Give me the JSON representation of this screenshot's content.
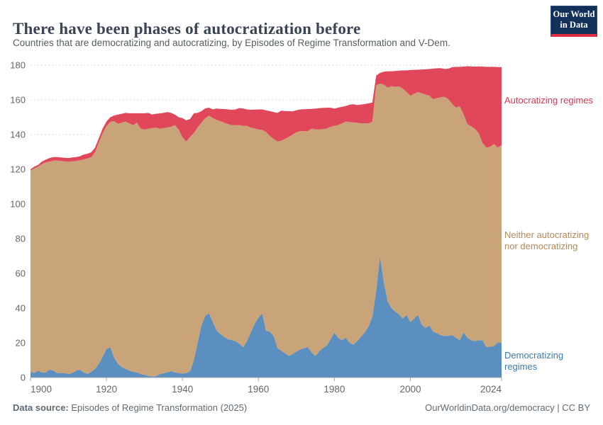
{
  "header": {
    "title": "There have been phases of autocratization before",
    "subtitle": "Countries that are democratizing and autocratizing, by Episodes of Regime Transformation and V-Dem.",
    "logo": {
      "line1": "Our World",
      "line2": "in Data"
    }
  },
  "series_labels": {
    "autocratizing": "Autocratizing regimes",
    "neither": "Neither autocratizing nor democratizing",
    "democratizing": "Democratizing regimes"
  },
  "footer": {
    "source_label": "Data source:",
    "source_value": " Episodes of Regime Transformation (2025)",
    "credit": "OurWorldinData.org/democracy | CC BY"
  },
  "colors": {
    "democratizing_area": "#5b8fc0",
    "neither_area": "#c8a478",
    "autocratizing_area": "#e0475a",
    "democratizing_label": "#3d7bad",
    "neither_label": "#b6895c",
    "autocratizing_label": "#d63b50",
    "gridline": "#dcdcdc",
    "axis": "#a7a7a7",
    "tick_text": "#666666",
    "logo_bg": "#12305a",
    "logo_bar": "#dc2e40"
  },
  "chart_data": {
    "type": "area",
    "stacked": true,
    "title": "There have been phases of autocratization before",
    "xlabel": "",
    "ylabel": "",
    "x_start": 1900,
    "x_end": 2024,
    "ylim": [
      0,
      180
    ],
    "grid": "dashed-horizontal",
    "legend_position": "right-edge-labels",
    "x_ticks": [
      1900,
      1920,
      1940,
      1960,
      1980,
      2000,
      2024
    ],
    "y_ticks": [
      0,
      20,
      40,
      60,
      80,
      100,
      120,
      140,
      160,
      180
    ],
    "series": [
      {
        "id": "democratizing",
        "name": "Democratizing regimes",
        "color": "#5b8fc0",
        "values": [
          3.5,
          2.6,
          4,
          2.8,
          3,
          4.6,
          4,
          2.6,
          2.6,
          2.6,
          2,
          2.6,
          4,
          4.6,
          3,
          2,
          3.3,
          5,
          8,
          12,
          16.5,
          17.5,
          11.5,
          8,
          6,
          5,
          4,
          3.3,
          3,
          2,
          1.5,
          1,
          0.6,
          0.8,
          1.9,
          2.5,
          3,
          3.7,
          3,
          2.6,
          2.2,
          2.6,
          3.5,
          10,
          20,
          30,
          35.5,
          37,
          32,
          27,
          25,
          23.5,
          22,
          21.6,
          21,
          19.5,
          17.5,
          21,
          26,
          31,
          34.5,
          37,
          27,
          26.5,
          24,
          17,
          15.5,
          14,
          12.5,
          13.5,
          15,
          16,
          17,
          17.5,
          14.5,
          12.5,
          15,
          17,
          18.5,
          22,
          26,
          23,
          21.5,
          23,
          20,
          19,
          21,
          23.5,
          26,
          29.5,
          35,
          50,
          70,
          55,
          44,
          40,
          38,
          36.5,
          34,
          36,
          32,
          34,
          36,
          30.5,
          28.5,
          30,
          26.5,
          25.5,
          24.5,
          24,
          24,
          24.5,
          23,
          21.5,
          26,
          23,
          21.5,
          21,
          21.5,
          21.5,
          17.5,
          17.8,
          18,
          20.3,
          20
        ]
      },
      {
        "id": "neither",
        "name": "Neither autocratizing nor democratizing",
        "color": "#c8a478",
        "values": [
          115.8,
          117.9,
          117.5,
          120.2,
          121,
          119.8,
          121,
          122.4,
          122.2,
          122,
          122.4,
          122,
          120.8,
          120.6,
          122.7,
          124.2,
          123.7,
          124.8,
          127.5,
          128.8,
          128.4,
          129.8,
          136.3,
          138.3,
          140.8,
          142.5,
          142.5,
          142.1,
          143.9,
          141.5,
          141.4,
          142.4,
          143.1,
          143.3,
          141.5,
          141.2,
          141.1,
          140.8,
          142.4,
          140.4,
          136.3,
          133.4,
          135.1,
          131,
          124.1,
          117,
          114,
          113.9,
          117.5,
          121.5,
          122.8,
          123.3,
          124,
          123.8,
          124.4,
          125.9,
          127.5,
          124,
          118,
          112.5,
          108.5,
          105.7,
          114.5,
          112.8,
          113.5,
          119,
          121,
          123.5,
          126.1,
          126.5,
          126.4,
          126,
          125,
          124.5,
          129,
          130.5,
          128,
          126.2,
          125,
          122.5,
          119,
          122.5,
          125,
          124.5,
          127.2,
          128,
          125.8,
          123,
          120.5,
          117,
          112.5,
          118.5,
          99.4,
          113.8,
          123,
          127.9,
          129.5,
          131.3,
          132.5,
          128.5,
          130.4,
          129.5,
          128.5,
          133.3,
          134.5,
          132.4,
          133.9,
          135.5,
          137,
          137.8,
          136.4,
          133.2,
          132.6,
          134.8,
          125.6,
          123.1,
          123.3,
          122.4,
          119.2,
          113.7,
          115,
          115.2,
          116.6,
          112.2,
          113.9
        ]
      },
      {
        "id": "autocratizing",
        "name": "Autocratizing regimes",
        "color": "#e0475a",
        "values": [
          0.7,
          1,
          1,
          1.5,
          1.5,
          2.1,
          2,
          2,
          2,
          2,
          2.1,
          2.2,
          2.2,
          2.3,
          2.8,
          2.8,
          2.8,
          2.7,
          2.5,
          2.7,
          2.6,
          2.7,
          3.2,
          5.2,
          5.2,
          5,
          5.8,
          6.9,
          5.4,
          8.8,
          9.4,
          9.1,
          7.9,
          7.9,
          8.8,
          8.8,
          8.9,
          8,
          6.1,
          7,
          11,
          12.2,
          10.4,
          11.3,
          8.4,
          6.5,
          5.6,
          4.6,
          5,
          6.5,
          7,
          7.9,
          8.5,
          8.9,
          9.1,
          9.9,
          10,
          9.5,
          10.3,
          10.9,
          11.5,
          11.8,
          12.5,
          14.2,
          15.5,
          16.5,
          17.3,
          16.1,
          14.9,
          13.4,
          12.6,
          12.5,
          12.6,
          12.7,
          11.3,
          12,
          12.2,
          12.2,
          12,
          11,
          10,
          10,
          9.5,
          9,
          10,
          10.5,
          10.2,
          10.8,
          11.1,
          11.5,
          11,
          5.5,
          6.1,
          7.4,
          9.5,
          8.6,
          9.1,
          9,
          10.5,
          12.5,
          14.8,
          13.8,
          12.9,
          13.7,
          14.6,
          15.4,
          17.6,
          17.2,
          16.8,
          16,
          17.6,
          21.1,
          23.4,
          22.7,
          27.6,
          33.3,
          34.5,
          35.8,
          38.6,
          44,
          46.5,
          46,
          44.4,
          46.4,
          44.9
        ]
      }
    ]
  }
}
